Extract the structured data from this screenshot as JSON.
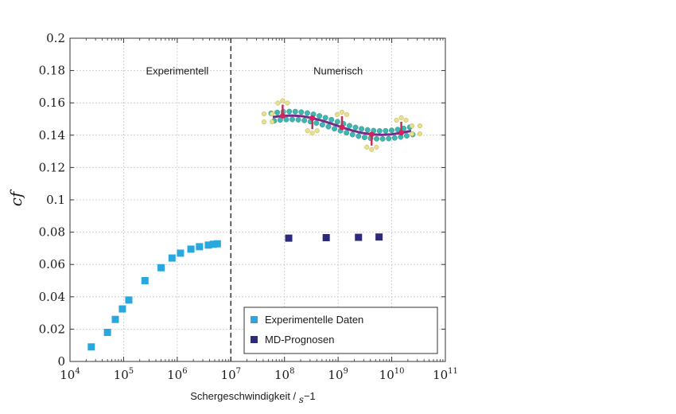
{
  "chart_data": {
    "type": "scatter",
    "xlabel": "Schergeschwindigkeit / s−1",
    "xlabel_parts": {
      "main": "Schergeschwindigkeit / ",
      "italic": "s",
      "rest": "−1"
    },
    "ylabel": "cf",
    "x_scale": "log",
    "xlim": [
      10000,
      100000000000
    ],
    "ylim": [
      0,
      0.2
    ],
    "x_tick_labels": [
      {
        "value": 10000,
        "base": "10",
        "exp": "4"
      },
      {
        "value": 100000,
        "base": "10",
        "exp": "5"
      },
      {
        "value": 1000000,
        "base": "10",
        "exp": "6"
      },
      {
        "value": 10000000,
        "base": "10",
        "exp": "7"
      },
      {
        "value": 100000000,
        "base": "10",
        "exp": "8"
      },
      {
        "value": 1000000000,
        "base": "10",
        "exp": "9"
      },
      {
        "value": 10000000000,
        "base": "10",
        "exp": "10"
      },
      {
        "value": 100000000000,
        "base": "10",
        "exp": "11"
      }
    ],
    "y_tick_labels": [
      "0",
      "0.02",
      "0.04",
      "0.06",
      "0.08",
      "0.1",
      "0.12",
      "0.14",
      "0.16",
      "0.18",
      "0.2"
    ],
    "y_tick_values": [
      0,
      0.02,
      0.04,
      0.06,
      0.08,
      0.1,
      0.12,
      0.14,
      0.16,
      0.18,
      0.2
    ],
    "divider_x": 10000000,
    "region_labels": [
      {
        "text": "Experimentell",
        "x": 1000000,
        "y": 0.18
      },
      {
        "text": "Numerisch",
        "x": 1000000000,
        "y": 0.18
      }
    ],
    "legend_position": "bottom-right",
    "series": [
      {
        "name": "Experimentelle Daten",
        "color": "#29a8e0",
        "points": [
          [
            25000,
            0.009
          ],
          [
            50000,
            0.018
          ],
          [
            70000,
            0.026
          ],
          [
            95000,
            0.0325
          ],
          [
            125000,
            0.038
          ],
          [
            250000,
            0.05
          ],
          [
            500000,
            0.058
          ],
          [
            800000,
            0.064
          ],
          [
            1150000,
            0.067
          ],
          [
            1800000,
            0.0695
          ],
          [
            2600000,
            0.071
          ],
          [
            3800000,
            0.072
          ],
          [
            4700000,
            0.0725
          ],
          [
            5600000,
            0.0728
          ]
        ]
      },
      {
        "name": "MD-Prognosen",
        "color": "#2e2a7a",
        "points": [
          [
            120000000,
            0.0763
          ],
          [
            600000000,
            0.0766
          ],
          [
            2400000000,
            0.0768
          ],
          [
            5800000000,
            0.077
          ]
        ]
      }
    ],
    "molecule_icon": "polymer-chain-molecule"
  }
}
